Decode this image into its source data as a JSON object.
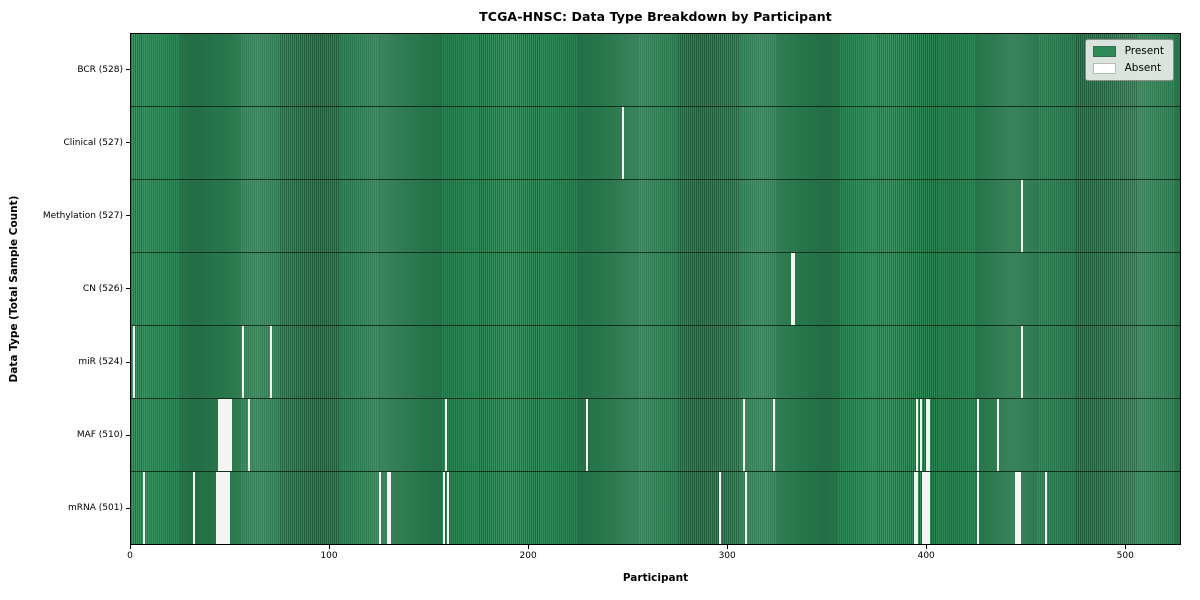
{
  "title": "TCGA-HNSC: Data Type Breakdown by Participant",
  "chart_data": {
    "type": "heatmap",
    "title": "TCGA-HNSC: Data Type Breakdown by Participant",
    "xlabel": "Participant",
    "ylabel": "Data Type (Total Sample Count)",
    "x_ticks": [
      0,
      100,
      200,
      300,
      400,
      500
    ],
    "x_range": [
      0,
      528
    ],
    "n_participants": 528,
    "grid": false,
    "legend_position": "upper right",
    "legend": [
      {
        "label": "Present",
        "color": "#2e8b57"
      },
      {
        "label": "Absent",
        "color": "#ffffff"
      }
    ],
    "colors": {
      "present": "#2e8b57",
      "absent": "#f4f5f2",
      "cell_edge": "#0a2614",
      "background": "#ffffff"
    },
    "rows": [
      {
        "label": "BCR (528)",
        "data_type": "BCR",
        "total_samples": 528,
        "absent_participants": []
      },
      {
        "label": "Clinical (527)",
        "data_type": "Clinical",
        "total_samples": 527,
        "absent_participants": [
          247
        ]
      },
      {
        "label": "Methylation (527)",
        "data_type": "Methylation",
        "total_samples": 527,
        "absent_participants": [
          448
        ]
      },
      {
        "label": "CN (526)",
        "data_type": "CN",
        "total_samples": 526,
        "absent_participants": [
          332,
          333
        ]
      },
      {
        "label": "miR (524)",
        "data_type": "miR",
        "total_samples": 524,
        "absent_participants": [
          1,
          56,
          70,
          448
        ]
      },
      {
        "label": "MAF (510)",
        "data_type": "MAF",
        "total_samples": 510,
        "absent_participants": [
          44,
          45,
          46,
          47,
          48,
          49,
          50,
          59,
          158,
          229,
          308,
          323,
          395,
          397,
          400,
          401,
          426,
          436
        ]
      },
      {
        "label": "mRNA (501)",
        "data_type": "mRNA",
        "total_samples": 501,
        "absent_participants": [
          6,
          31,
          43,
          44,
          45,
          46,
          47,
          48,
          49,
          125,
          129,
          130,
          157,
          159,
          296,
          309,
          394,
          395,
          398,
          399,
          400,
          401,
          426,
          445,
          446,
          447,
          460
        ]
      }
    ]
  }
}
